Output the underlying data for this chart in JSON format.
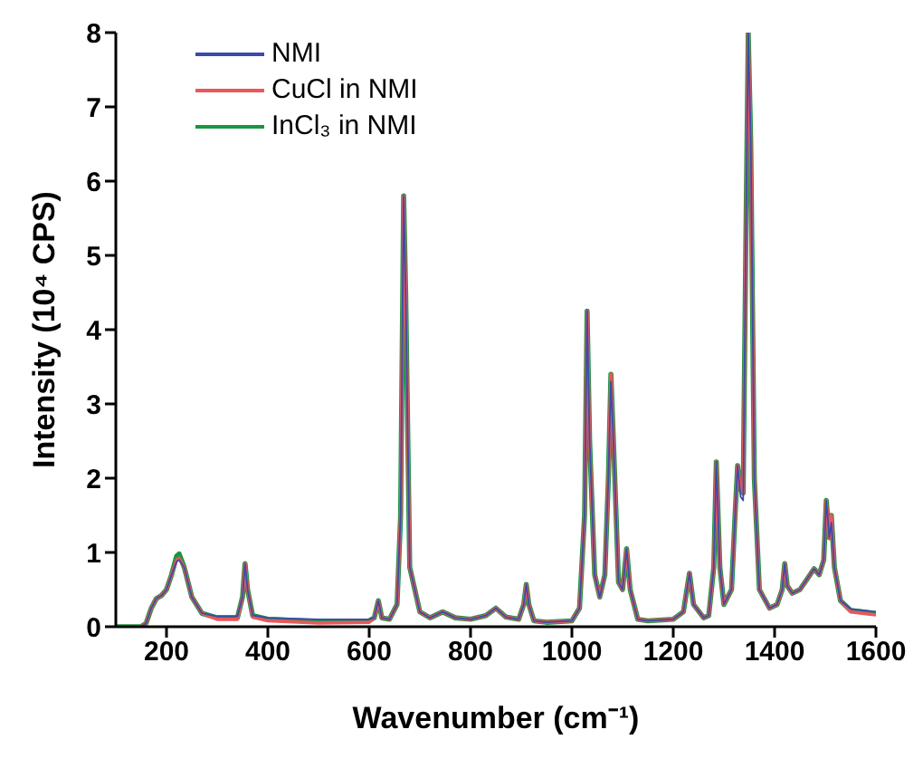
{
  "chart_data": {
    "type": "line",
    "xlabel": "Wavenumber (cm⁻¹)",
    "ylabel": "Intensity (10⁴ CPS)",
    "x": [
      100,
      150,
      160,
      170,
      180,
      190,
      200,
      210,
      220,
      225,
      235,
      250,
      270,
      300,
      340,
      350,
      355,
      360,
      370,
      400,
      500,
      600,
      610,
      618,
      625,
      640,
      655,
      662,
      668,
      672,
      680,
      700,
      720,
      745,
      770,
      800,
      830,
      850,
      870,
      895,
      905,
      910,
      915,
      925,
      950,
      1000,
      1015,
      1025,
      1030,
      1035,
      1045,
      1055,
      1065,
      1072,
      1077,
      1082,
      1092,
      1100,
      1108,
      1115,
      1130,
      1150,
      1200,
      1220,
      1232,
      1240,
      1260,
      1270,
      1280,
      1285,
      1292,
      1300,
      1315,
      1322,
      1327,
      1333,
      1338,
      1343,
      1348,
      1353,
      1360,
      1370,
      1390,
      1405,
      1415,
      1420,
      1425,
      1435,
      1450,
      1470,
      1478,
      1488,
      1497,
      1502,
      1508,
      1512,
      1518,
      1530,
      1550,
      1600
    ],
    "series": [
      {
        "name": "NMI",
        "color": "#3b4ba8",
        "values": [
          0,
          0,
          0.05,
          0.25,
          0.38,
          0.42,
          0.5,
          0.7,
          0.88,
          0.9,
          0.8,
          0.4,
          0.18,
          0.14,
          0.14,
          0.4,
          0.85,
          0.5,
          0.15,
          0.12,
          0.1,
          0.1,
          0.12,
          0.35,
          0.12,
          0.1,
          0.3,
          1.5,
          5.8,
          4.5,
          0.8,
          0.2,
          0.12,
          0.2,
          0.12,
          0.1,
          0.15,
          0.25,
          0.13,
          0.1,
          0.3,
          0.57,
          0.3,
          0.08,
          0.06,
          0.08,
          0.25,
          1.5,
          4.25,
          2.5,
          0.7,
          0.4,
          0.7,
          2,
          3.3,
          2.5,
          0.6,
          0.5,
          1.05,
          0.5,
          0.1,
          0.08,
          0.1,
          0.2,
          0.72,
          0.3,
          0.12,
          0.15,
          0.8,
          2.22,
          0.8,
          0.3,
          0.5,
          1.5,
          2.17,
          1.75,
          1.7,
          5,
          8,
          6.5,
          2,
          0.5,
          0.25,
          0.3,
          0.5,
          0.85,
          0.55,
          0.45,
          0.5,
          0.7,
          0.78,
          0.7,
          0.9,
          1.7,
          1.2,
          1.4,
          0.8,
          0.35,
          0.24,
          0.2
        ]
      },
      {
        "name": "CuCl in NMI",
        "color": "#e8585c",
        "values": [
          0,
          0,
          0.05,
          0.25,
          0.38,
          0.42,
          0.5,
          0.7,
          0.9,
          0.92,
          0.8,
          0.4,
          0.18,
          0.1,
          0.1,
          0.4,
          0.85,
          0.5,
          0.13,
          0.08,
          0.05,
          0.06,
          0.12,
          0.35,
          0.12,
          0.1,
          0.3,
          1.5,
          5.8,
          4.5,
          0.8,
          0.2,
          0.12,
          0.2,
          0.12,
          0.1,
          0.15,
          0.25,
          0.13,
          0.1,
          0.3,
          0.57,
          0.3,
          0.08,
          0.06,
          0.08,
          0.25,
          1.5,
          4.25,
          2.5,
          0.7,
          0.4,
          0.7,
          2,
          3.4,
          2.5,
          0.6,
          0.5,
          1.05,
          0.5,
          0.1,
          0.08,
          0.1,
          0.2,
          0.72,
          0.3,
          0.12,
          0.15,
          0.8,
          2.22,
          0.8,
          0.3,
          0.5,
          1.5,
          2.17,
          1.85,
          1.8,
          5,
          8,
          6.5,
          2,
          0.5,
          0.25,
          0.3,
          0.5,
          0.85,
          0.55,
          0.45,
          0.5,
          0.7,
          0.78,
          0.7,
          0.9,
          1.7,
          1.2,
          1.5,
          0.8,
          0.35,
          0.2,
          0.16
        ]
      },
      {
        "name": "InCl₃ in NMI",
        "color": "#1a9641",
        "values": [
          0,
          0,
          0.05,
          0.25,
          0.38,
          0.42,
          0.5,
          0.7,
          0.95,
          0.98,
          0.8,
          0.4,
          0.18,
          0.12,
          0.12,
          0.4,
          0.85,
          0.5,
          0.15,
          0.1,
          0.07,
          0.08,
          0.12,
          0.35,
          0.12,
          0.1,
          0.3,
          1.5,
          5.8,
          4.5,
          0.8,
          0.2,
          0.12,
          0.2,
          0.12,
          0.1,
          0.15,
          0.25,
          0.13,
          0.1,
          0.3,
          0.57,
          0.3,
          0.08,
          0.06,
          0.08,
          0.25,
          1.5,
          4.25,
          2.5,
          0.7,
          0.4,
          0.7,
          2,
          3.4,
          2.5,
          0.6,
          0.5,
          1.05,
          0.5,
          0.1,
          0.08,
          0.1,
          0.2,
          0.72,
          0.3,
          0.12,
          0.15,
          0.8,
          2.22,
          0.8,
          0.3,
          0.5,
          1.5,
          2.17,
          1.85,
          1.8,
          5,
          8,
          6.5,
          2,
          0.5,
          0.25,
          0.3,
          0.5,
          0.85,
          0.55,
          0.45,
          0.5,
          0.7,
          0.78,
          0.7,
          0.9,
          1.7,
          1.2,
          1.5,
          0.8,
          0.35,
          0.22,
          0.18
        ]
      }
    ],
    "xlim": [
      100,
      1600
    ],
    "xticks": [
      200,
      400,
      600,
      800,
      1000,
      1200,
      1400,
      1600
    ],
    "ylim": [
      0,
      8
    ],
    "yticks": [
      0,
      1,
      2,
      3,
      4,
      5,
      6,
      7,
      8
    ],
    "legend": "top left",
    "marker": "none",
    "line_style": "solid"
  }
}
